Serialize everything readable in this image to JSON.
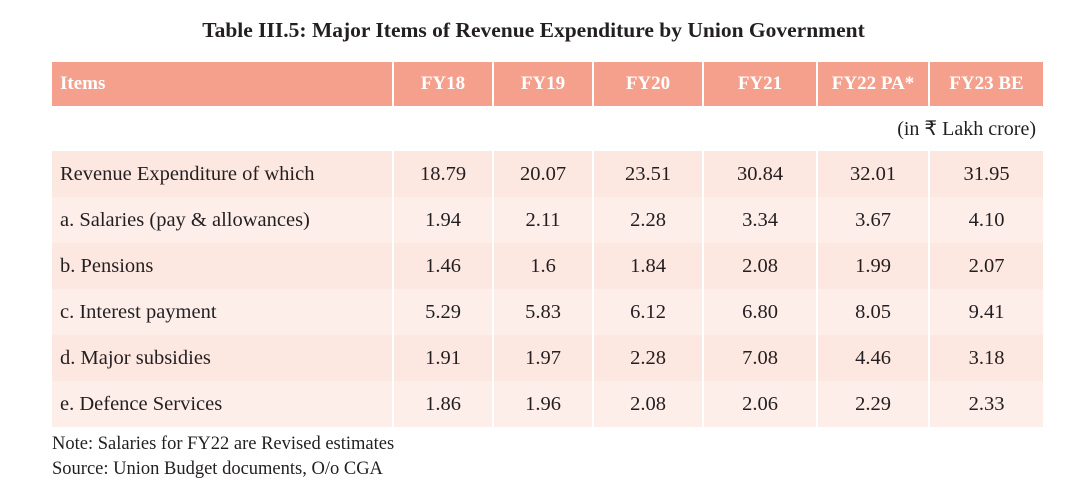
{
  "title": "Table III.5: Major Items of Revenue Expenditure by Union Government",
  "header": [
    "Items",
    "FY18",
    "FY19",
    "FY20",
    "FY21",
    "FY22 PA*",
    "FY23 BE"
  ],
  "unit_note": "(in ₹ Lakh crore)",
  "rows": [
    {
      "label": "Revenue Expenditure of which",
      "values": [
        "18.79",
        "20.07",
        "23.51",
        "30.84",
        "32.01",
        "31.95"
      ]
    },
    {
      "label": "a. Salaries (pay & allowances)",
      "values": [
        "1.94",
        "2.11",
        "2.28",
        "3.34",
        "3.67",
        "4.10"
      ]
    },
    {
      "label": "b. Pensions",
      "values": [
        "1.46",
        "1.6",
        "1.84",
        "2.08",
        "1.99",
        "2.07"
      ]
    },
    {
      "label": "c. Interest payment",
      "values": [
        "5.29",
        "5.83",
        "6.12",
        "6.80",
        "8.05",
        "9.41"
      ]
    },
    {
      "label": "d. Major subsidies",
      "values": [
        "1.91",
        "1.97",
        "2.28",
        "7.08",
        "4.46",
        "3.18"
      ]
    },
    {
      "label": "e. Defence Services",
      "values": [
        "1.86",
        "1.96",
        "2.08",
        "2.06",
        "2.29",
        "2.33"
      ]
    }
  ],
  "notes": {
    "note": "Note: Salaries for FY22 are Revised estimates",
    "source": "Source: Union Budget documents, O/o CGA"
  },
  "colors": {
    "header_bg": "#f4a08c",
    "row_bg": "#fde7e1",
    "row_bg_alt": "#fdeeea"
  }
}
